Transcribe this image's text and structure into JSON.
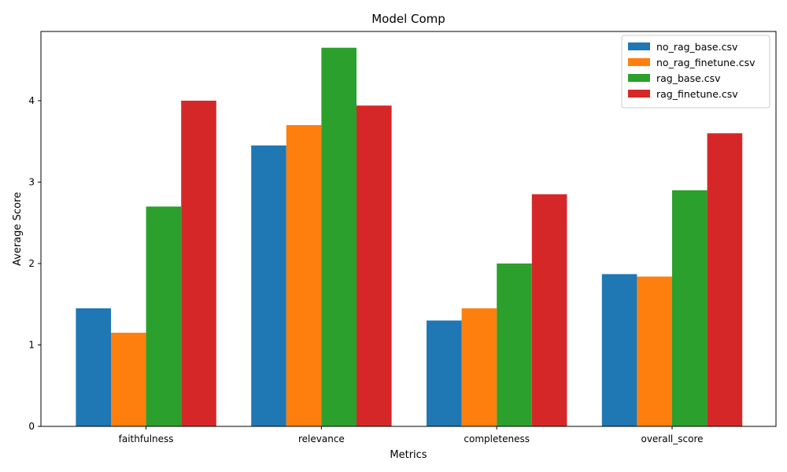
{
  "chart_data": {
    "type": "bar",
    "title": "Model Comp",
    "xlabel": "Metrics",
    "ylabel": "Average Score",
    "categories": [
      "faithfulness",
      "relevance",
      "completeness",
      "overall_score"
    ],
    "ylim": [
      0,
      4.85
    ],
    "yticks": [
      0,
      1,
      2,
      3,
      4
    ],
    "legend_position": "top-right",
    "grid": false,
    "series": [
      {
        "name": "no_rag_base.csv",
        "color": "#1f77b4",
        "values": [
          1.45,
          3.45,
          1.3,
          1.87
        ]
      },
      {
        "name": "no_rag_finetune.csv",
        "color": "#ff7f0e",
        "values": [
          1.15,
          3.7,
          1.45,
          1.84
        ]
      },
      {
        "name": "rag_base.csv",
        "color": "#2ca02c",
        "values": [
          2.7,
          4.65,
          2.0,
          2.9
        ]
      },
      {
        "name": "rag_finetune.csv",
        "color": "#d62728",
        "values": [
          4.0,
          3.94,
          2.85,
          3.6
        ]
      }
    ]
  }
}
